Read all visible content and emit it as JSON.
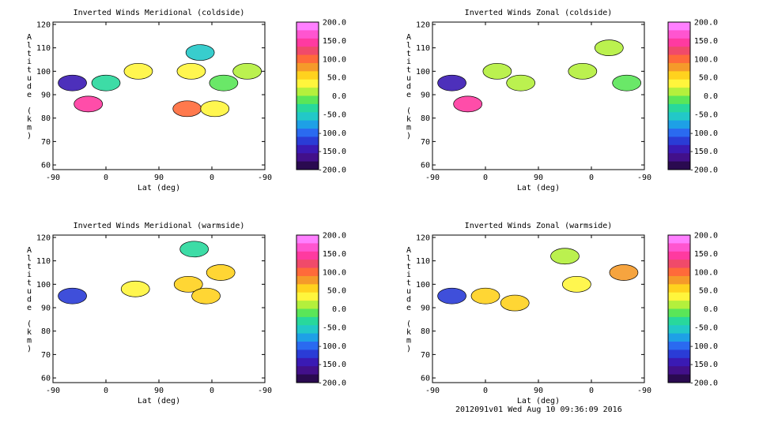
{
  "footer": "2012091v01 Wed Aug 10 09:36:09 2016",
  "colorbar": {
    "ticks": [
      "200.0",
      "150.0",
      "100.0",
      "50.0",
      "0.0",
      "-50.0",
      "-100.0",
      "-150.0",
      "-200.0"
    ],
    "levels": [
      "#ff7fff",
      "#ff55d0",
      "#ff3aa0",
      "#f04a6a",
      "#ff6a3a",
      "#f59a2a",
      "#ffd21e",
      "#fff53c",
      "#b4f03c",
      "#5ae658",
      "#28d89c",
      "#22c8c8",
      "#1ea0e6",
      "#2a6af0",
      "#2a3cd6",
      "#3a1ab4",
      "#42108a",
      "#2a0a50"
    ]
  },
  "chart_data": [
    {
      "type": "heatmap",
      "title": "Inverted Winds Meridional (coldside)",
      "xlabel": "Lat (deg)",
      "ylabel": "Altitude (km)",
      "xticks": [
        "-90",
        "0",
        "90",
        "0",
        "-90"
      ],
      "yticks": [
        "60",
        "70",
        "80",
        "90",
        "100",
        "110",
        "120"
      ],
      "ylim": [
        58,
        121
      ],
      "zlim": [
        -200,
        200
      ],
      "cells": [
        {
          "x": -57,
          "y": 95,
          "v": -150
        },
        {
          "x": -30,
          "y": 86,
          "v": 150
        },
        {
          "x": 0,
          "y": 95,
          "v": -30
        },
        {
          "x": 55,
          "y": 100,
          "v": 30
        },
        {
          "x": 138,
          "y": 84,
          "v": 100
        },
        {
          "x": 145,
          "y": 100,
          "v": 40
        },
        {
          "x": 160,
          "y": 108,
          "v": -60
        },
        {
          "x": 200,
          "y": 95,
          "v": -20
        },
        {
          "x": 240,
          "y": 100,
          "v": 20
        },
        {
          "x": 185,
          "y": 84,
          "v": 40
        }
      ]
    },
    {
      "type": "heatmap",
      "title": "Inverted Winds Zonal (coldside)",
      "xlabel": "Lat (deg)",
      "ylabel": "Altitude (km)",
      "xticks": [
        "-90",
        "0",
        "90",
        "0",
        "-90"
      ],
      "yticks": [
        "60",
        "70",
        "80",
        "90",
        "100",
        "110",
        "120"
      ],
      "ylim": [
        58,
        121
      ],
      "zlim": [
        -200,
        200
      ],
      "cells": [
        {
          "x": -57,
          "y": 95,
          "v": -150
        },
        {
          "x": -30,
          "y": 86,
          "v": 150
        },
        {
          "x": 20,
          "y": 100,
          "v": 15
        },
        {
          "x": 60,
          "y": 95,
          "v": 10
        },
        {
          "x": 165,
          "y": 100,
          "v": 20
        },
        {
          "x": 210,
          "y": 110,
          "v": 10
        },
        {
          "x": 240,
          "y": 95,
          "v": -20
        }
      ]
    },
    {
      "type": "heatmap",
      "title": "Inverted Winds Meridional (warmside)",
      "xlabel": "Lat (deg)",
      "ylabel": "Altitude (km)",
      "xticks": [
        "-90",
        "0",
        "90",
        "0",
        "-90"
      ],
      "yticks": [
        "60",
        "70",
        "80",
        "90",
        "100",
        "110",
        "120"
      ],
      "ylim": [
        58,
        121
      ],
      "zlim": [
        -200,
        200
      ],
      "cells": [
        {
          "x": -57,
          "y": 95,
          "v": -120
        },
        {
          "x": 50,
          "y": 98,
          "v": 40
        },
        {
          "x": 140,
          "y": 100,
          "v": 50
        },
        {
          "x": 170,
          "y": 95,
          "v": 60
        },
        {
          "x": 195,
          "y": 105,
          "v": 50
        },
        {
          "x": 150,
          "y": 115,
          "v": -30
        }
      ]
    },
    {
      "type": "heatmap",
      "title": "Inverted Winds Zonal (warmside)",
      "xlabel": "Lat (deg)",
      "ylabel": "Altitude (km)",
      "xticks": [
        "-90",
        "0",
        "90",
        "0",
        "-90"
      ],
      "yticks": [
        "60",
        "70",
        "80",
        "90",
        "100",
        "110",
        "120"
      ],
      "ylim": [
        58,
        121
      ],
      "zlim": [
        -200,
        200
      ],
      "cells": [
        {
          "x": -57,
          "y": 95,
          "v": -120
        },
        {
          "x": 0,
          "y": 95,
          "v": 50
        },
        {
          "x": 50,
          "y": 92,
          "v": 50
        },
        {
          "x": 155,
          "y": 100,
          "v": 40
        },
        {
          "x": 235,
          "y": 105,
          "v": 70
        },
        {
          "x": 135,
          "y": 112,
          "v": 20
        }
      ]
    }
  ]
}
